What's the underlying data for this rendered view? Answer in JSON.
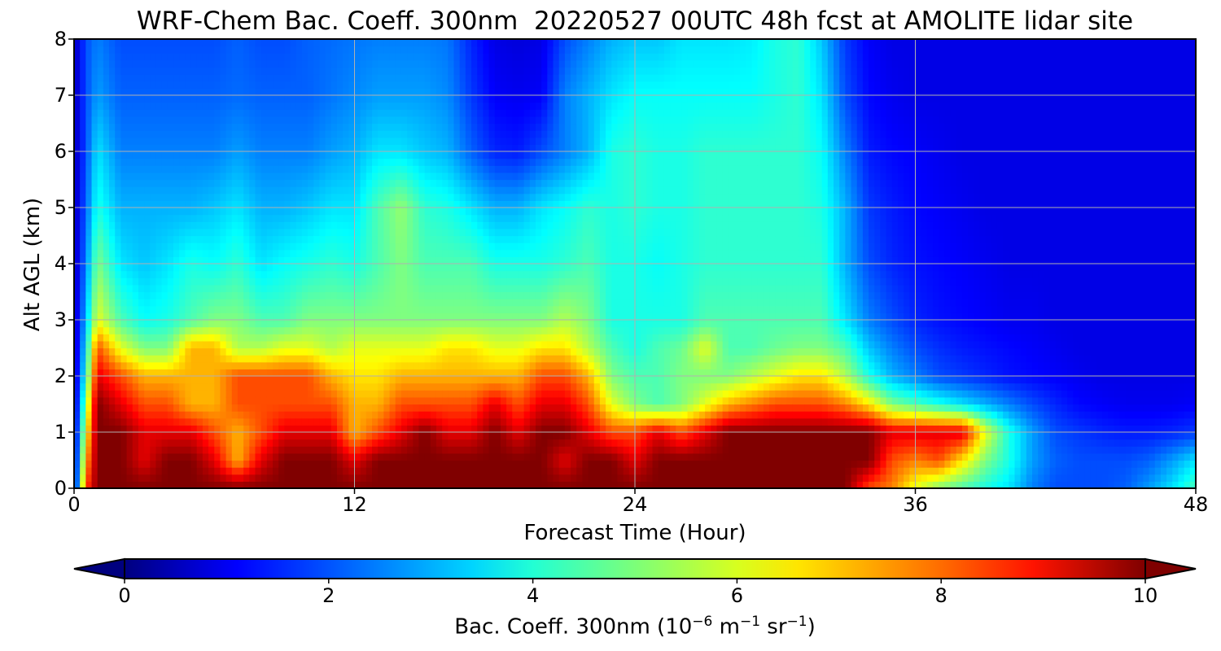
{
  "chart_data": {
    "type": "heatmap",
    "title": "WRF-Chem Bac. Coeff. 300nm  20220527 00UTC 48h fcst at AMOLITE lidar site",
    "xlabel": "Forecast Time (Hour)",
    "ylabel": "Alt AGL (km)",
    "xlim": [
      0,
      48
    ],
    "ylim": [
      0,
      8
    ],
    "x_ticks": [
      "0",
      "12",
      "24",
      "36",
      "48"
    ],
    "y_ticks": [
      "0",
      "1",
      "2",
      "3",
      "4",
      "5",
      "6",
      "7",
      "8"
    ],
    "grid": true,
    "colormap": "jet",
    "colorbar": {
      "label_prefix": "Bac. Coeff. 300nm  (10",
      "label_exp1": "−6",
      "label_mid": " m",
      "label_exp2": "−1",
      "label_mid2": " sr",
      "label_exp3": "−1",
      "label_suffix": ")",
      "range": [
        0,
        10
      ],
      "ticks": [
        "0",
        "2",
        "4",
        "6",
        "8",
        "10"
      ],
      "extend": "both",
      "orientation": "horizontal"
    },
    "x": [
      0,
      0.5,
      1,
      2,
      3,
      4,
      5,
      6,
      7,
      8,
      9,
      10,
      11,
      12,
      13,
      14,
      15,
      16,
      17,
      18,
      19,
      20,
      21,
      22,
      23,
      24,
      25,
      26,
      27,
      28,
      29,
      30,
      31,
      32,
      33,
      34,
      35,
      36,
      37,
      38,
      39,
      40,
      41,
      42,
      43,
      44,
      45,
      46,
      47,
      48
    ],
    "z_rows": [
      {
        "alt": 0.0,
        "values": [
          0.5,
          8,
          10,
          10,
          10,
          10,
          10,
          10,
          10,
          10,
          10,
          10,
          10,
          10,
          10,
          10,
          10,
          10,
          10,
          10,
          10,
          10,
          10,
          10,
          10,
          10,
          10,
          10,
          10,
          10,
          10,
          10,
          10,
          10,
          10,
          8,
          7.5,
          6,
          5,
          4.5,
          4,
          3.5,
          2.5,
          2,
          2,
          2,
          2.2,
          2.8,
          3.5,
          4.5
        ]
      },
      {
        "alt": 0.5,
        "values": [
          0.5,
          7,
          10,
          10,
          9,
          10,
          10,
          9,
          7,
          9,
          10,
          10,
          10,
          9,
          10,
          10,
          10,
          10,
          10,
          10,
          10,
          10,
          9,
          10,
          10,
          9,
          10,
          10,
          10,
          10,
          10,
          10,
          10,
          10,
          10,
          10,
          8,
          7.5,
          8,
          6.5,
          5,
          4,
          2.8,
          2.2,
          2,
          2,
          2,
          2.2,
          2.8,
          3.5
        ]
      },
      {
        "alt": 1.0,
        "values": [
          0.5,
          6,
          10,
          10,
          9,
          9,
          9,
          8,
          7,
          8,
          9,
          9,
          9,
          7,
          8,
          9,
          10,
          9,
          9,
          10,
          9,
          10,
          10,
          9,
          8,
          8,
          9,
          8,
          9,
          10,
          10,
          10,
          10,
          10,
          10,
          10,
          9,
          9,
          9,
          9,
          6,
          4,
          2.8,
          2,
          1.8,
          1.6,
          1.5,
          1.5,
          1.6,
          1.8
        ]
      },
      {
        "alt": 1.5,
        "values": [
          0.5,
          5,
          10,
          9,
          8,
          8,
          7,
          7,
          8,
          8,
          8,
          8,
          8,
          7,
          7,
          8,
          8,
          8,
          8,
          9,
          8,
          9,
          9,
          8,
          6,
          5,
          4.5,
          5,
          6,
          7,
          7.5,
          8,
          8,
          8,
          7.5,
          6.5,
          5,
          4.5,
          4,
          3.5,
          3,
          2.5,
          2,
          1.6,
          1.3,
          1.2,
          1.1,
          1.1,
          1.1,
          1.2
        ]
      },
      {
        "alt": 2.0,
        "values": [
          0.5,
          4,
          9,
          8,
          7,
          7,
          7,
          7,
          8,
          8,
          8,
          8,
          7,
          6.5,
          6.5,
          7,
          7,
          7,
          7,
          7,
          7,
          8,
          8,
          7,
          5,
          4.5,
          4.5,
          5,
          5,
          5,
          5.5,
          6,
          6.5,
          6.5,
          5.5,
          4,
          3,
          2.5,
          2,
          1.8,
          1.6,
          1.4,
          1.3,
          1.2,
          1.1,
          1.0,
          1.0,
          1.0,
          1.0,
          1.0
        ]
      },
      {
        "alt": 2.5,
        "values": [
          0.5,
          3.5,
          8,
          6,
          5,
          5,
          7,
          7,
          5.5,
          5.5,
          6,
          6,
          5.5,
          6,
          6,
          6,
          6,
          6.5,
          6.5,
          6,
          6,
          6.5,
          6.5,
          5.5,
          4.5,
          4,
          4.5,
          4.8,
          6,
          4.5,
          4.5,
          4.8,
          5,
          5,
          4.5,
          3.2,
          2.5,
          2,
          1.7,
          1.5,
          1.4,
          1.3,
          1.2,
          1.1,
          1.0,
          1.0,
          1.0,
          1.0,
          1.0,
          1.0
        ]
      },
      {
        "alt": 3.0,
        "values": [
          0.5,
          3,
          6,
          4.5,
          3.8,
          4,
          4.5,
          5,
          5,
          4.5,
          4.5,
          5,
          5,
          5,
          5,
          5,
          5,
          5,
          5,
          5,
          5,
          5,
          5.5,
          5,
          4,
          4,
          4,
          4,
          4.5,
          4.5,
          4.5,
          4.5,
          4.5,
          4.5,
          3.5,
          2.5,
          2,
          1.6,
          1.4,
          1.3,
          1.2,
          1.1,
          1.1,
          1.0,
          1.0,
          1.0,
          1.0,
          1.0,
          1.0,
          1.0
        ]
      },
      {
        "alt": 4.0,
        "values": [
          0.5,
          2.5,
          5,
          3.5,
          3.2,
          3.5,
          4,
          3.8,
          4.2,
          3.5,
          3.8,
          4,
          4.2,
          4,
          4.5,
          5,
          4.5,
          4.5,
          4.5,
          4,
          4,
          4,
          4.2,
          4.5,
          4,
          4,
          3.8,
          4,
          4.2,
          4.2,
          4.2,
          4.2,
          4.2,
          4.2,
          3,
          2,
          1.6,
          1.4,
          1.3,
          1.2,
          1.1,
          1.0,
          1.0,
          1.0,
          1.0,
          1.0,
          1.0,
          1.0,
          1.0,
          1.0
        ]
      },
      {
        "alt": 5.0,
        "values": [
          0.5,
          2.2,
          4,
          3,
          3,
          3,
          3,
          3.2,
          3.5,
          3,
          3,
          3.2,
          3.5,
          3.5,
          4.5,
          5.2,
          4.2,
          4,
          3.5,
          3,
          3,
          3.5,
          3.8,
          4.2,
          4,
          4.2,
          4,
          4,
          4.2,
          4.2,
          4.2,
          4.2,
          4.2,
          4,
          3,
          1.8,
          1.5,
          1.3,
          1.2,
          1.1,
          1.0,
          1.0,
          1.0,
          1.0,
          1.0,
          1.0,
          1.0,
          1.0,
          1.0,
          1.0
        ]
      },
      {
        "alt": 6.0,
        "values": [
          0.5,
          2,
          3.5,
          2.5,
          2.5,
          2.5,
          2.5,
          2.5,
          2.8,
          2.5,
          2.5,
          2.5,
          2.8,
          3,
          3.5,
          3.5,
          3.2,
          3,
          2.2,
          1.6,
          1.5,
          2,
          2.5,
          3,
          4,
          4.2,
          4,
          4,
          4.2,
          4.2,
          4.2,
          4.2,
          4.2,
          3.8,
          2.5,
          1.5,
          1.3,
          1.2,
          1.1,
          1.0,
          1.0,
          1.0,
          1.0,
          1.0,
          1.0,
          1.0,
          1.0,
          1.0,
          1.0,
          1.0
        ]
      },
      {
        "alt": 7.0,
        "values": [
          0.5,
          2,
          2.8,
          2.2,
          2.2,
          2.2,
          2.2,
          2.2,
          2.3,
          2.2,
          2.2,
          2.2,
          2.4,
          2.6,
          2.8,
          2.8,
          2.8,
          2.6,
          1.8,
          1.2,
          1.1,
          1.2,
          2.5,
          3,
          3.5,
          3.8,
          3.8,
          3.8,
          3.8,
          3.8,
          3.8,
          4,
          4.2,
          3.5,
          2,
          1.3,
          1.1,
          1.0,
          1.0,
          1.0,
          1.0,
          1.0,
          1.0,
          1.0,
          1.0,
          1.0,
          1.0,
          1.0,
          1.0,
          1.0
        ]
      },
      {
        "alt": 8.0,
        "values": [
          0.5,
          2,
          2.5,
          2,
          2,
          2,
          2,
          2,
          2.2,
          2,
          2,
          2.2,
          2.3,
          2.4,
          2.5,
          2.5,
          2.5,
          2.4,
          1.6,
          1,
          0.9,
          1,
          2,
          2.5,
          3,
          3.2,
          3.2,
          3.5,
          3.5,
          3.5,
          3.6,
          4,
          4.2,
          3.2,
          1.8,
          1.2,
          1.0,
          1.0,
          1.0,
          1.0,
          1.0,
          1.0,
          1.0,
          1.0,
          1.0,
          1.0,
          1.0,
          1.0,
          1.0,
          1.0
        ]
      }
    ]
  }
}
